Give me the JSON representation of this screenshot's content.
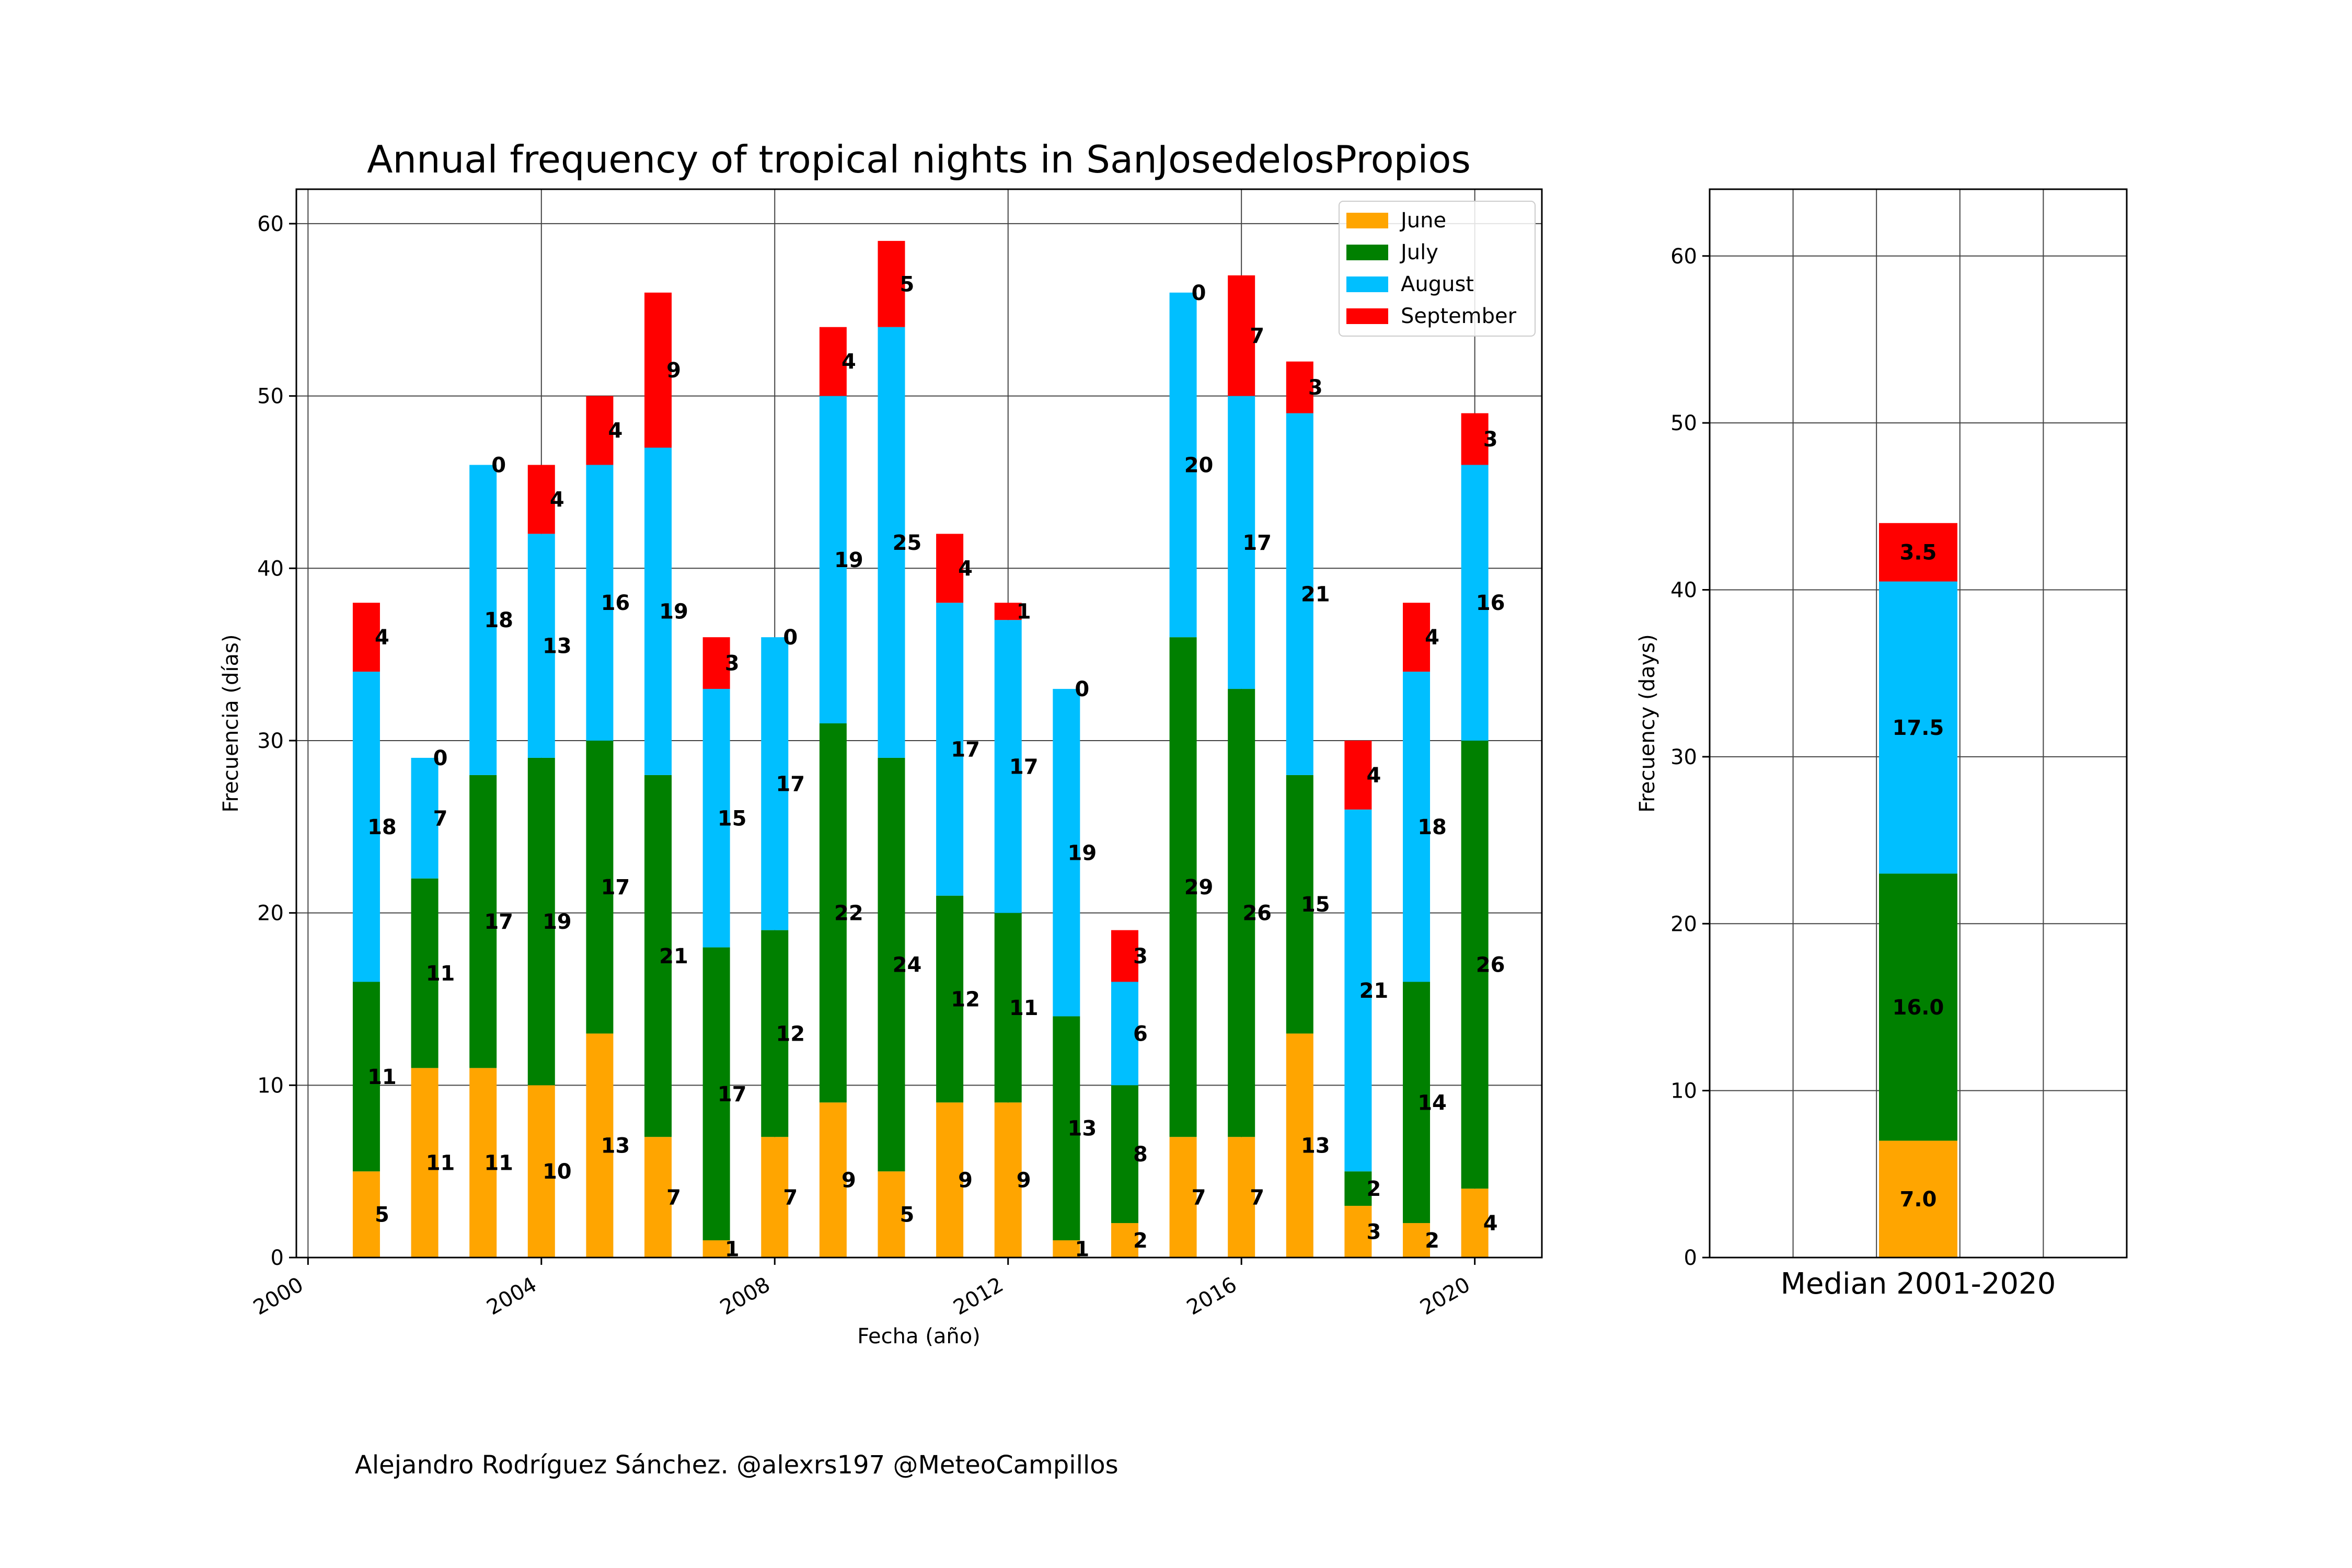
{
  "chart_data": [
    {
      "type": "bar",
      "stacked": true,
      "title": "Annual frequency of tropical nights in SanJosedelosPropios",
      "xlabel": "Fecha (año)",
      "ylabel": "Frecuencia (días)",
      "x": [
        2001,
        2002,
        2003,
        2004,
        2005,
        2006,
        2007,
        2008,
        2009,
        2010,
        2011,
        2012,
        2013,
        2014,
        2015,
        2016,
        2017,
        2018,
        2019,
        2020
      ],
      "x_ticks": [
        "2000",
        "2004",
        "2008",
        "2012",
        "2016",
        "2020"
      ],
      "x_tick_values": [
        2000,
        2004,
        2008,
        2012,
        2016,
        2020
      ],
      "xlim": [
        1999.8,
        2021.15
      ],
      "y_ticks": [
        "0",
        "10",
        "20",
        "30",
        "40",
        "50",
        "60"
      ],
      "ylim": [
        0,
        62
      ],
      "grid": true,
      "legend_position": "top-right",
      "series": [
        {
          "name": "June",
          "color": "#FFA500",
          "values": [
            5,
            11,
            11,
            10,
            13,
            7,
            1,
            7,
            9,
            5,
            9,
            9,
            1,
            2,
            7,
            7,
            13,
            3,
            2,
            4
          ]
        },
        {
          "name": "July",
          "color": "#008000",
          "values": [
            11,
            11,
            17,
            19,
            17,
            21,
            17,
            12,
            22,
            24,
            12,
            11,
            13,
            8,
            29,
            26,
            15,
            2,
            14,
            26
          ]
        },
        {
          "name": "August",
          "color": "#00BFFF",
          "values": [
            18,
            7,
            18,
            13,
            16,
            19,
            15,
            17,
            19,
            25,
            17,
            17,
            19,
            6,
            20,
            17,
            21,
            21,
            18,
            16
          ]
        },
        {
          "name": "September",
          "color": "#FF0000",
          "values": [
            4,
            0,
            0,
            4,
            4,
            9,
            3,
            0,
            4,
            5,
            4,
            1,
            0,
            3,
            0,
            7,
            3,
            4,
            4,
            3
          ]
        }
      ]
    },
    {
      "type": "bar",
      "stacked": true,
      "title": "",
      "xlabel": "Median 2001-2020",
      "ylabel": "Frecuency (days)",
      "y_ticks": [
        "0",
        "10",
        "20",
        "30",
        "40",
        "50",
        "60"
      ],
      "ylim": [
        0,
        64
      ],
      "grid": true,
      "series": [
        {
          "name": "June",
          "color": "#FFA500",
          "values": [
            7.0
          ],
          "labels": [
            "7.0"
          ]
        },
        {
          "name": "July",
          "color": "#008000",
          "values": [
            16.0
          ],
          "labels": [
            "16.0"
          ]
        },
        {
          "name": "August",
          "color": "#00BFFF",
          "values": [
            17.5
          ],
          "labels": [
            "17.5"
          ]
        },
        {
          "name": "September",
          "color": "#FF0000",
          "values": [
            3.5
          ],
          "labels": [
            "3.5"
          ]
        }
      ]
    }
  ],
  "footer": {
    "credit": "Alejandro Rodríguez Sánchez. @alexrs197 @MeteoCampillos"
  }
}
